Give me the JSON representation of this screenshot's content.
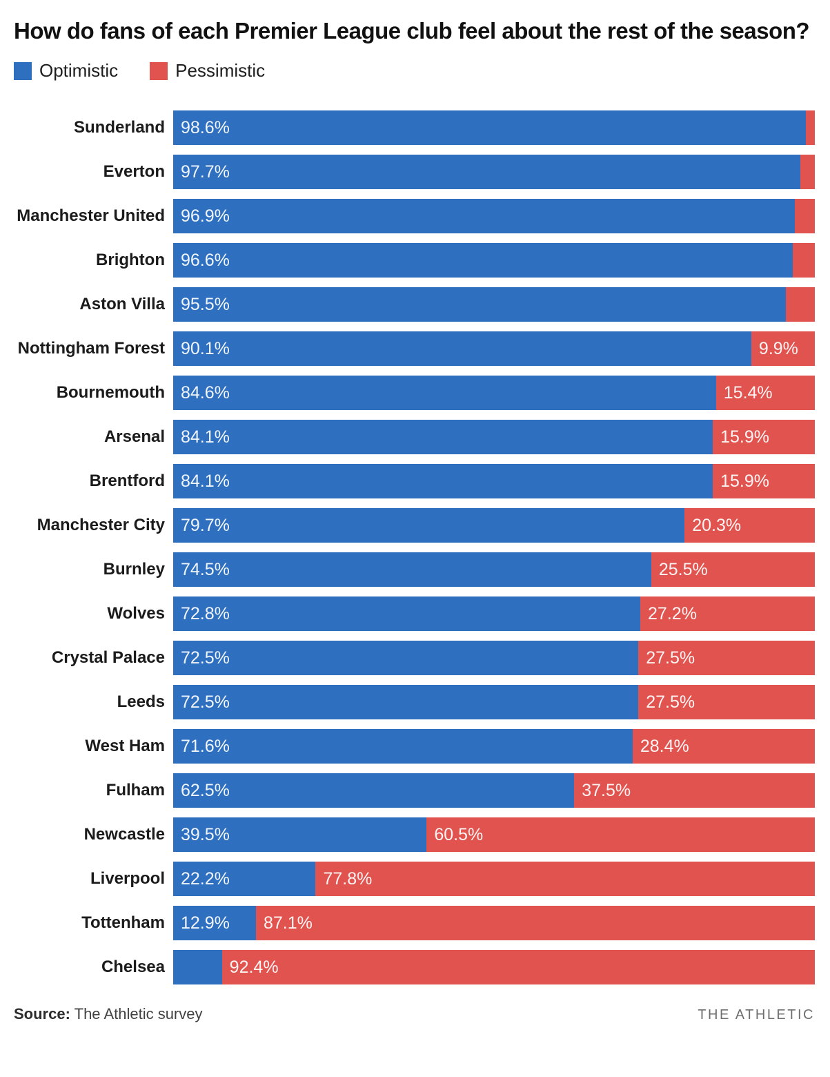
{
  "title": "How do fans of each Premier League club feel about the rest of the season?",
  "legend": [
    {
      "label": "Optimistic",
      "color": "#2E6FC0"
    },
    {
      "label": "Pessimistic",
      "color": "#E1534F"
    }
  ],
  "source": {
    "prefix": "Source:",
    "text": " The Athletic survey"
  },
  "branding": "THE ATHLETIC",
  "chart_data": {
    "type": "bar",
    "orientation": "horizontal",
    "stacked": true,
    "unit": "%",
    "xlim": [
      0,
      100
    ],
    "grid": false,
    "legend_position": "top-left",
    "colors": {
      "optimistic": "#2E6FC0",
      "pessimistic": "#E1534F"
    },
    "categories": [
      "Sunderland",
      "Everton",
      "Manchester United",
      "Brighton",
      "Aston Villa",
      "Nottingham Forest",
      "Bournemouth",
      "Arsenal",
      "Brentford",
      "Manchester City",
      "Burnley",
      "Wolves",
      "Crystal Palace",
      "Leeds",
      "West Ham",
      "Fulham",
      "Newcastle",
      "Liverpool",
      "Tottenham",
      "Chelsea"
    ],
    "series": [
      {
        "name": "Optimistic",
        "values": [
          98.6,
          97.7,
          96.9,
          96.6,
          95.5,
          90.1,
          84.6,
          84.1,
          84.1,
          79.7,
          74.5,
          72.8,
          72.5,
          72.5,
          71.6,
          62.5,
          39.5,
          22.2,
          12.9,
          7.6
        ]
      },
      {
        "name": "Pessimistic",
        "values": [
          1.4,
          2.3,
          3.1,
          3.4,
          4.5,
          9.9,
          15.4,
          15.9,
          15.9,
          20.3,
          25.5,
          27.2,
          27.5,
          27.5,
          28.4,
          37.5,
          60.5,
          77.8,
          87.1,
          92.4
        ]
      }
    ],
    "rows": [
      {
        "club": "Sunderland",
        "optimistic": 98.6,
        "pessimistic": 1.4,
        "optimistic_label": "98.6%",
        "pessimistic_label": ""
      },
      {
        "club": "Everton",
        "optimistic": 97.7,
        "pessimistic": 2.3,
        "optimistic_label": "97.7%",
        "pessimistic_label": ""
      },
      {
        "club": "Manchester United",
        "optimistic": 96.9,
        "pessimistic": 3.1,
        "optimistic_label": "96.9%",
        "pessimistic_label": ""
      },
      {
        "club": "Brighton",
        "optimistic": 96.6,
        "pessimistic": 3.4,
        "optimistic_label": "96.6%",
        "pessimistic_label": ""
      },
      {
        "club": "Aston Villa",
        "optimistic": 95.5,
        "pessimistic": 4.5,
        "optimistic_label": "95.5%",
        "pessimistic_label": ""
      },
      {
        "club": "Nottingham Forest",
        "optimistic": 90.1,
        "pessimistic": 9.9,
        "optimistic_label": "90.1%",
        "pessimistic_label": "9.9%"
      },
      {
        "club": "Bournemouth",
        "optimistic": 84.6,
        "pessimistic": 15.4,
        "optimistic_label": "84.6%",
        "pessimistic_label": "15.4%"
      },
      {
        "club": "Arsenal",
        "optimistic": 84.1,
        "pessimistic": 15.9,
        "optimistic_label": "84.1%",
        "pessimistic_label": "15.9%"
      },
      {
        "club": "Brentford",
        "optimistic": 84.1,
        "pessimistic": 15.9,
        "optimistic_label": "84.1%",
        "pessimistic_label": "15.9%"
      },
      {
        "club": "Manchester City",
        "optimistic": 79.7,
        "pessimistic": 20.3,
        "optimistic_label": "79.7%",
        "pessimistic_label": "20.3%"
      },
      {
        "club": "Burnley",
        "optimistic": 74.5,
        "pessimistic": 25.5,
        "optimistic_label": "74.5%",
        "pessimistic_label": "25.5%"
      },
      {
        "club": "Wolves",
        "optimistic": 72.8,
        "pessimistic": 27.2,
        "optimistic_label": "72.8%",
        "pessimistic_label": "27.2%"
      },
      {
        "club": "Crystal Palace",
        "optimistic": 72.5,
        "pessimistic": 27.5,
        "optimistic_label": "72.5%",
        "pessimistic_label": "27.5%"
      },
      {
        "club": "Leeds",
        "optimistic": 72.5,
        "pessimistic": 27.5,
        "optimistic_label": "72.5%",
        "pessimistic_label": "27.5%"
      },
      {
        "club": "West Ham",
        "optimistic": 71.6,
        "pessimistic": 28.4,
        "optimistic_label": "71.6%",
        "pessimistic_label": "28.4%"
      },
      {
        "club": "Fulham",
        "optimistic": 62.5,
        "pessimistic": 37.5,
        "optimistic_label": "62.5%",
        "pessimistic_label": "37.5%"
      },
      {
        "club": "Newcastle",
        "optimistic": 39.5,
        "pessimistic": 60.5,
        "optimistic_label": "39.5%",
        "pessimistic_label": "60.5%"
      },
      {
        "club": "Liverpool",
        "optimistic": 22.2,
        "pessimistic": 77.8,
        "optimistic_label": "22.2%",
        "pessimistic_label": "77.8%"
      },
      {
        "club": "Tottenham",
        "optimistic": 12.9,
        "pessimistic": 87.1,
        "optimistic_label": "12.9%",
        "pessimistic_label": "87.1%"
      },
      {
        "club": "Chelsea",
        "optimistic": 7.6,
        "pessimistic": 92.4,
        "optimistic_label": "",
        "pessimistic_label": "92.4%"
      }
    ]
  }
}
